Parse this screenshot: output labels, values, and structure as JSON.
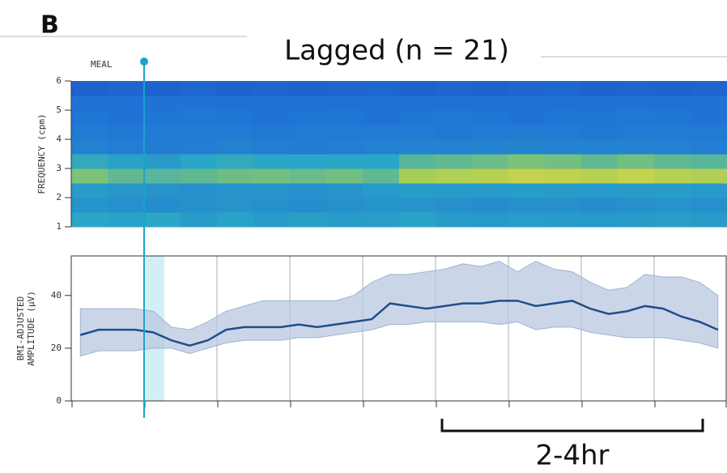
{
  "panel_label": "B",
  "title": "Lagged (n = 21)",
  "annotations": {
    "meal": "MEAL",
    "duration": "2-4hr"
  },
  "chart_data": [
    {
      "type": "heatmap",
      "y_label": "FREQUENCY (cpm)",
      "ylim": [
        1,
        6
      ],
      "yticks": [
        1,
        2,
        3,
        4,
        5,
        6
      ],
      "colors": [
        "#1a2fa8",
        "#1f6fd6",
        "#2aa6c6",
        "#9ccd5a",
        "#ffd93a"
      ],
      "values": [
        [
          0.5,
          0.48,
          0.5,
          0.45,
          0.48,
          0.45,
          0.47,
          0.45,
          0.46,
          0.48,
          0.45,
          0.44,
          0.46,
          0.45,
          0.44,
          0.45,
          0.47,
          0.45
        ],
        [
          0.42,
          0.4,
          0.38,
          0.4,
          0.42,
          0.4,
          0.38,
          0.4,
          0.42,
          0.42,
          0.4,
          0.38,
          0.4,
          0.4,
          0.38,
          0.4,
          0.42,
          0.4
        ],
        [
          0.45,
          0.43,
          0.42,
          0.4,
          0.42,
          0.42,
          0.4,
          0.42,
          0.44,
          0.46,
          0.45,
          0.46,
          0.46,
          0.45,
          0.44,
          0.45,
          0.46,
          0.44
        ],
        [
          0.68,
          0.62,
          0.6,
          0.62,
          0.65,
          0.66,
          0.64,
          0.66,
          0.62,
          0.78,
          0.8,
          0.82,
          0.85,
          0.84,
          0.82,
          0.85,
          0.82,
          0.8
        ],
        [
          0.52,
          0.48,
          0.45,
          0.5,
          0.52,
          0.5,
          0.5,
          0.5,
          0.5,
          0.6,
          0.62,
          0.64,
          0.68,
          0.66,
          0.62,
          0.66,
          0.62,
          0.6
        ],
        [
          0.33,
          0.32,
          0.31,
          0.32,
          0.33,
          0.32,
          0.31,
          0.32,
          0.33,
          0.34,
          0.33,
          0.34,
          0.35,
          0.34,
          0.33,
          0.34,
          0.33,
          0.32
        ],
        [
          0.3,
          0.29,
          0.3,
          0.31,
          0.3,
          0.29,
          0.3,
          0.3,
          0.31,
          0.3,
          0.29,
          0.3,
          0.31,
          0.3,
          0.29,
          0.3,
          0.31,
          0.3
        ],
        [
          0.28,
          0.27,
          0.28,
          0.29,
          0.28,
          0.27,
          0.28,
          0.28,
          0.27,
          0.28,
          0.29,
          0.28,
          0.27,
          0.28,
          0.28,
          0.29,
          0.28,
          0.27
        ],
        [
          0.27,
          0.26,
          0.27,
          0.27,
          0.26,
          0.27,
          0.27,
          0.26,
          0.27,
          0.27,
          0.26,
          0.27,
          0.27,
          0.26,
          0.27,
          0.27,
          0.26,
          0.27
        ],
        [
          0.2,
          0.21,
          0.2,
          0.22,
          0.2,
          0.21,
          0.2,
          0.21,
          0.22,
          0.2,
          0.21,
          0.2,
          0.21,
          0.22,
          0.2,
          0.21,
          0.2,
          0.21
        ]
      ]
    },
    {
      "type": "line",
      "y_label": [
        "BMI-ADJUSTED",
        "AMPLITUDE (μV)"
      ],
      "ylim": [
        0,
        55
      ],
      "yticks": [
        0,
        20,
        40
      ],
      "color": "#1f4e8c",
      "band_color": "#b8c8e0",
      "categories": [
        null,
        null,
        null,
        null,
        null,
        null,
        null,
        null,
        null,
        null,
        null,
        null,
        null,
        null,
        null,
        null,
        null,
        null,
        null,
        null,
        null,
        null,
        null,
        null,
        null,
        null,
        null,
        null,
        null,
        null,
        null,
        null,
        null,
        null,
        null,
        null
      ],
      "values": [
        25,
        27,
        27,
        27,
        26,
        23,
        21,
        23,
        27,
        28,
        28,
        28,
        29,
        28,
        29,
        30,
        31,
        37,
        36,
        35,
        36,
        37,
        37,
        38,
        38,
        36,
        37,
        38,
        35,
        33,
        34,
        36,
        35,
        32,
        30,
        27
      ],
      "band_upper": [
        35,
        35,
        35,
        35,
        34,
        28,
        27,
        30,
        34,
        36,
        38,
        38,
        38,
        38,
        38,
        40,
        45,
        48,
        48,
        49,
        50,
        52,
        51,
        53,
        49,
        53,
        50,
        49,
        45,
        42,
        43,
        48,
        47,
        47,
        45,
        40
      ],
      "band_lower": [
        17,
        19,
        19,
        19,
        20,
        20,
        18,
        20,
        22,
        23,
        23,
        23,
        24,
        24,
        25,
        26,
        27,
        29,
        29,
        30,
        30,
        30,
        30,
        29,
        30,
        27,
        28,
        28,
        26,
        25,
        24,
        24,
        24,
        23,
        22,
        20
      ]
    }
  ]
}
